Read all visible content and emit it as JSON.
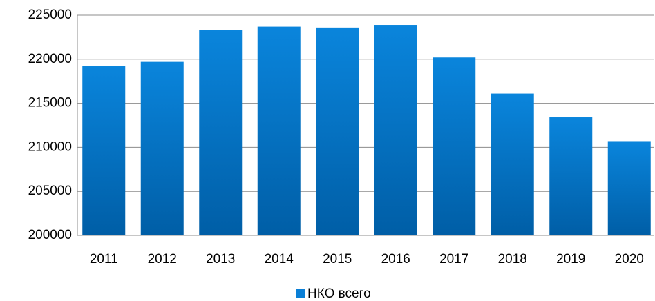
{
  "chart_data": {
    "type": "bar",
    "categories": [
      "2011",
      "2012",
      "2013",
      "2014",
      "2015",
      "2016",
      "2017",
      "2018",
      "2019",
      "2020"
    ],
    "series": [
      {
        "name": "НКО всего",
        "color": "#0a7fd6",
        "values": [
          219200,
          219700,
          223300,
          223700,
          223600,
          223900,
          220200,
          216100,
          213400,
          210700
        ]
      }
    ],
    "ylim": [
      200000,
      225000
    ],
    "yticks": [
      200000,
      205000,
      210000,
      215000,
      220000,
      225000
    ],
    "grid": true,
    "legend": "bottom"
  }
}
